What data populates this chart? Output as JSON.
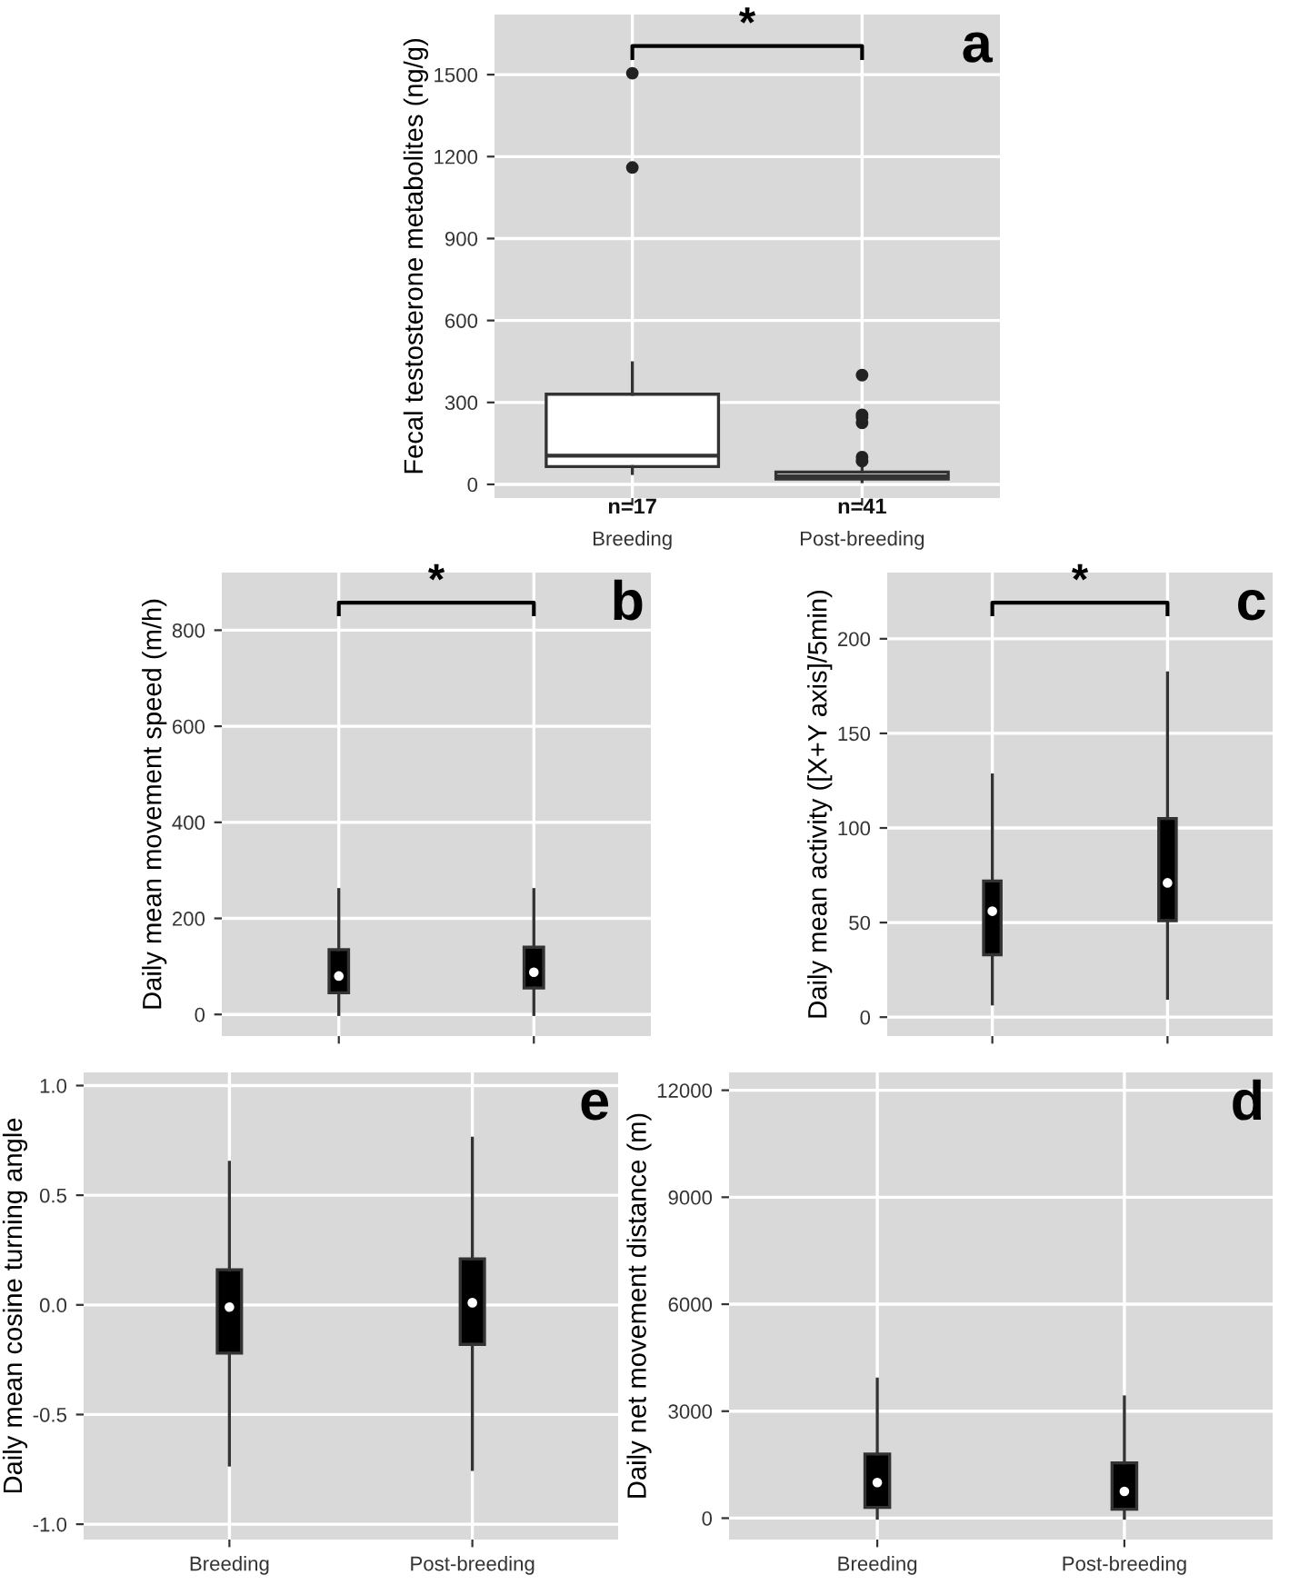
{
  "chart_data": [
    {
      "type": "box",
      "title": "a",
      "ylabel": "Fecal testosterone metabolites (ng/g)",
      "categories": [
        "Breeding",
        "Post-breeding"
      ],
      "ylim": [
        -50,
        1720
      ],
      "yticks": [
        0,
        300,
        600,
        900,
        1200,
        1500
      ],
      "grid": true,
      "series": [
        {
          "color": "#ffffff",
          "boxes": [
            {
              "low": 40,
              "q1": 65,
              "median": 105,
              "q3": 330,
              "high": 445,
              "outliers": [
                1160,
                1505
              ]
            },
            {
              "low": 10,
              "q1": 20,
              "median": 30,
              "q3": 45,
              "high": 60,
              "outliers": [
                85,
                100,
                225,
                245,
                255,
                400
              ]
            }
          ]
        }
      ],
      "annotations": [
        "*",
        "n=17",
        "n=41"
      ]
    },
    {
      "type": "box",
      "title": "b",
      "ylabel": "Daily mean movement speed (m/h)",
      "categories": [
        null,
        null
      ],
      "ylim": [
        -45,
        920
      ],
      "yticks": [
        0,
        200,
        400,
        600,
        800
      ],
      "grid": true,
      "series": [
        {
          "color": "#000000",
          "boxes": [
            {
              "low": 0,
              "q1": 45,
              "median": 80,
              "q3": 135,
              "high": 260
            },
            {
              "low": 0,
              "q1": 55,
              "median": 88,
              "q3": 140,
              "high": 260
            }
          ]
        }
      ],
      "annotations": [
        "*"
      ]
    },
    {
      "type": "box",
      "title": "c",
      "ylabel": "Daily mean activity ([X+Y axis]/5min)",
      "categories": [
        null,
        null
      ],
      "ylim": [
        -10,
        235
      ],
      "yticks": [
        0,
        50,
        100,
        150,
        200
      ],
      "grid": true,
      "series": [
        {
          "color": "#000000",
          "boxes": [
            {
              "low": 7,
              "q1": 33,
              "median": 56,
              "q3": 72,
              "high": 128
            },
            {
              "low": 10,
              "q1": 51,
              "median": 71,
              "q3": 105,
              "high": 182
            }
          ]
        }
      ],
      "annotations": [
        "*"
      ]
    },
    {
      "type": "box",
      "title": "e",
      "ylabel": "Daily mean cosine turning angle",
      "categories": [
        "Breeding",
        "Post-breeding"
      ],
      "ylim": [
        -1.07,
        1.06
      ],
      "yticks": [
        {
          "value": -1,
          "label": "-1.0"
        },
        {
          "value": -0.5,
          "label": "-0.5"
        },
        {
          "value": 0,
          "label": "0.0"
        },
        {
          "value": 0.5,
          "label": "0.5"
        },
        {
          "value": 1,
          "label": "1.0"
        }
      ],
      "grid": true,
      "series": [
        {
          "color": "#000000",
          "boxes": [
            {
              "low": -0.73,
              "q1": -0.22,
              "median": -0.01,
              "q3": 0.16,
              "high": 0.65
            },
            {
              "low": -0.75,
              "q1": -0.18,
              "median": 0.01,
              "q3": 0.21,
              "high": 0.76
            }
          ]
        }
      ]
    },
    {
      "type": "box",
      "title": "d",
      "ylabel": "Daily net movement distance (m)",
      "categories": [
        "Breeding",
        "Post-breeding"
      ],
      "ylim": [
        -600,
        12500
      ],
      "yticks": [
        0,
        3000,
        6000,
        9000,
        12000
      ],
      "grid": true,
      "series": [
        {
          "color": "#000000",
          "boxes": [
            {
              "low": 0,
              "q1": 300,
              "median": 1000,
              "q3": 1800,
              "high": 3900
            },
            {
              "low": 0,
              "q1": 250,
              "median": 750,
              "q3": 1550,
              "high": 3400
            }
          ]
        }
      ]
    }
  ]
}
